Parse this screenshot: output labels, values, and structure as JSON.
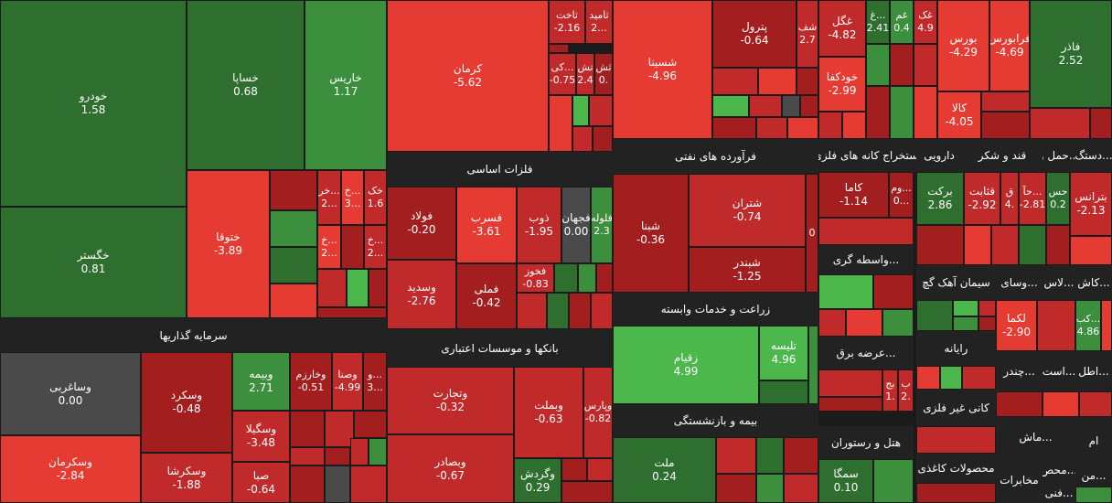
{
  "colors": {
    "green_dark": "#2e6e2e",
    "green_mid": "#3c8f3c",
    "green_light": "#4cb84c",
    "red_dark": "#a31f1f",
    "red_mid": "#c12a2a",
    "red_light": "#e53b32",
    "gray": "#4a4a4a",
    "header_bg": "#222222"
  },
  "sectors": {
    "mali": "سرمایه گذاریها",
    "felezat": "فلزات اساسی",
    "banks": "بانکها و موسسات اعتباری",
    "naft": "فرآورده های نفتی",
    "zeraat": "زراعت و خدمات وابسته",
    "bime": "بیمه و بازنشستگی",
    "estekhraj": "استخراج کانه های فلزی",
    "daroo": "دارویی",
    "ghand": "قند و شکر",
    "haml": "حمل و...",
    "dastgah": "دستگ...",
    "vasete": "واسطه گری...",
    "siman": "سیمان آهک گچ",
    "vasay": "وسای...",
    "las": "لاس...",
    "kash": "کاش...",
    "arze": "عرضه برق...",
    "rayane": "رایانه",
    "chandr": "چندر...",
    "ast": "است...",
    "kani": "کانی غیر فلزی",
    "hotel": "هتل و رستوران",
    "kaghaz": "محصولات کاغذی",
    "mokhaberat": "مخابرات",
    "etel": "اطل...",
    "ems": "ام",
    "mase": "ماش...",
    "mahs": "محص...",
    "mon": "من...",
    "fani": "فنی..."
  },
  "tiles": {
    "khodro": {
      "symbol": "خودرو",
      "value": "1.58"
    },
    "khesapa": {
      "symbol": "خساپا",
      "value": "0.68"
    },
    "kharis": {
      "symbol": "خاریس",
      "value": "1.17"
    },
    "khegostar": {
      "symbol": "خگستر",
      "value": "0.81"
    },
    "khatuga": {
      "symbol": "ختوقا",
      "value": "-3.89"
    },
    "khak": {
      "symbol": "خک",
      "value": "1.6"
    },
    "khk1": {
      "symbol": "خر...",
      "value": "2..."
    },
    "khk2": {
      "symbol": "خ...",
      "value": "3..."
    },
    "khk3": {
      "symbol": "خ...",
      "value": "2..."
    },
    "khk4": {
      "symbol": "خ...",
      "value": "2..."
    },
    "kerman": {
      "symbol": "کرمان",
      "value": "-5.62"
    },
    "sabit": {
      "symbol": "ثاخت",
      "value": "-2.16"
    },
    "tamid": {
      "symbol": "ثامید",
      "value": "2..."
    },
    "tki": {
      "symbol": "کی...",
      "value": "-0.75"
    },
    "tsh": {
      "symbol": "تش",
      "value": "2.4"
    },
    "tsh2": {
      "symbol": "ثش",
      "value": "0."
    },
    "shasina": {
      "symbol": "شسینا",
      "value": "-4.96"
    },
    "patrol": {
      "symbol": "پترول",
      "value": "-0.64"
    },
    "shef": {
      "symbol": "شف",
      "value": "2.7"
    },
    "ghgol": {
      "symbol": "غگل",
      "value": "-4.82"
    },
    "gh": {
      "symbol": "غ...",
      "value": "2.41"
    },
    "ghem": {
      "symbol": "غم",
      "value": "0.4"
    },
    "ghk": {
      "symbol": "غک",
      "value": "4.9"
    },
    "khodkafa": {
      "symbol": "خودکفا",
      "value": "-2.99"
    },
    "boors": {
      "symbol": "بورس",
      "value": "-4.29"
    },
    "farabourse": {
      "symbol": "فرابورس",
      "value": "-4.69"
    },
    "kala": {
      "symbol": "کالا",
      "value": "-4.05"
    },
    "fazar": {
      "symbol": "فاذر",
      "value": "2.52"
    },
    "foolad": {
      "symbol": "فولاد",
      "value": "-0.20"
    },
    "fesarb": {
      "symbol": "فسرب",
      "value": "-3.61"
    },
    "zob": {
      "symbol": "ذوب",
      "value": "-1.95"
    },
    "fajahan": {
      "symbol": "فجهان",
      "value": "0.00"
    },
    "felole": {
      "symbol": "فلوله",
      "value": "2.3"
    },
    "fekhoz": {
      "symbol": "فخوز",
      "value": "-0.83"
    },
    "vasadid": {
      "symbol": "وسدید",
      "value": "-2.76"
    },
    "femli": {
      "symbol": "فملی",
      "value": "-0.42"
    },
    "shetran": {
      "symbol": "شتران",
      "value": "-0.74"
    },
    "shebna": {
      "symbol": "شبنا",
      "value": "-0.36"
    },
    "shebandar": {
      "symbol": "شبندر",
      "value": "-1.25"
    },
    "shx": {
      "symbol": "",
      "value": "0"
    },
    "kama": {
      "symbol": "کاما",
      "value": "-1.14"
    },
    "vam": {
      "symbol": "وم...",
      "value": "0..."
    },
    "barakat": {
      "symbol": "برکت",
      "value": "2.86"
    },
    "ghatabat": {
      "symbol": "قثابت",
      "value": "-2.92"
    },
    "gh2": {
      "symbol": "ق",
      "value": "4."
    },
    "ha": {
      "symbol": "حآ...",
      "value": "-2.81"
    },
    "has": {
      "symbol": "حس",
      "value": "0.2"
    },
    "betrans": {
      "symbol": "بترانس",
      "value": "-2.13"
    },
    "vasaghr": {
      "symbol": "وساغربی",
      "value": "0.00"
    },
    "vaskard": {
      "symbol": "وسکرد",
      "value": "-0.48"
    },
    "vabime": {
      "symbol": "وبیمه",
      "value": "2.71"
    },
    "vkharazm": {
      "symbol": "وخارزم",
      "value": "-0.51"
    },
    "vasna": {
      "symbol": "وصنا",
      "value": "-4.99"
    },
    "vsmall": {
      "symbol": "و...",
      "value": "3..."
    },
    "vaskerman": {
      "symbol": "وسکرمان",
      "value": "-2.84"
    },
    "vaskasha": {
      "symbol": "وسکرشا",
      "value": "-1.88"
    },
    "vasgila": {
      "symbol": "وسگیلا",
      "value": "-3.48"
    },
    "saba": {
      "symbol": "صبا",
      "value": "-0.64"
    },
    "vatejarat": {
      "symbol": "وتجارت",
      "value": "-0.32"
    },
    "vabemelat": {
      "symbol": "وبملت",
      "value": "-0.63"
    },
    "vaparis": {
      "symbol": "وپارس",
      "value": "-0.82"
    },
    "vabesadar": {
      "symbol": "وبصادر",
      "value": "-0.67"
    },
    "vagardesh": {
      "symbol": "وگردش",
      "value": "0.29"
    },
    "zaghiam": {
      "symbol": "زقیام",
      "value": "4.99"
    },
    "telise": {
      "symbol": "تلیسه",
      "value": "4.96"
    },
    "melat": {
      "symbol": "ملت",
      "value": "0.24"
    },
    "lekma": {
      "symbol": "لکما",
      "value": "-2.90"
    },
    "kab": {
      "symbol": "کب...",
      "value": "4.86"
    },
    "b1": {
      "symbol": "ب",
      "value": "2."
    },
    "bj": {
      "symbol": "بج",
      "value": "1."
    },
    "semga": {
      "symbol": "سمگا",
      "value": "0.10"
    }
  }
}
